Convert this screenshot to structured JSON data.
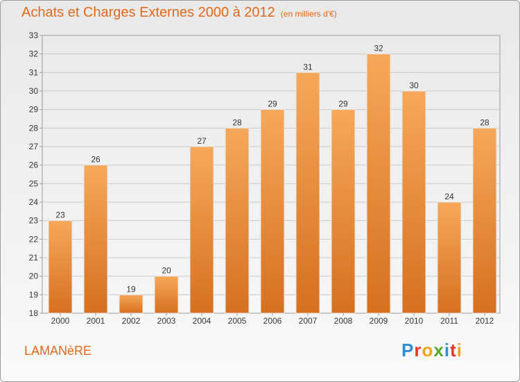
{
  "title": "Achats et Charges Externes 2000 à 2012",
  "subtitle": "(en milliers d'€)",
  "commune": "LAMANèRE",
  "brand": {
    "letters": [
      "P",
      "r",
      "o",
      "x",
      "i",
      "t",
      "i"
    ],
    "colors": [
      "#2a8fd4",
      "#e8352a",
      "#f2a31a",
      "#56a832",
      "#2a8fd4",
      "#e8352a",
      "#f2a31a"
    ]
  },
  "colors": {
    "bar_top": "#f6a85a",
    "bar_bottom": "#d6701f",
    "accent": "#e0681c",
    "grid": "#c8c8c8"
  },
  "chart_data": {
    "type": "bar",
    "categories": [
      "2000",
      "2001",
      "2002",
      "2003",
      "2004",
      "2005",
      "2006",
      "2007",
      "2008",
      "2009",
      "2010",
      "2011",
      "2012"
    ],
    "values": [
      23,
      26,
      19,
      20,
      27,
      28,
      29,
      31,
      29,
      32,
      30,
      24,
      28
    ],
    "ylim": [
      18,
      33
    ],
    "yticks": [
      18,
      19,
      20,
      21,
      22,
      23,
      24,
      25,
      26,
      27,
      28,
      29,
      30,
      31,
      32,
      33
    ],
    "grid": true,
    "data_labels": true
  }
}
